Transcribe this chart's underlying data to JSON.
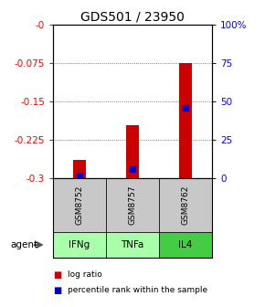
{
  "title": "GDS501 / 23950",
  "samples": [
    "GSM8752",
    "GSM8757",
    "GSM8762"
  ],
  "agents": [
    "IFNg",
    "TNFa",
    "IL4"
  ],
  "log_ratios": [
    -0.265,
    -0.197,
    -0.075
  ],
  "percentile_ranks": [
    1.5,
    6.0,
    46.0
  ],
  "ylim_left": [
    -0.3,
    0.0
  ],
  "ylim_right": [
    0,
    100
  ],
  "yticks_left": [
    0.0,
    -0.075,
    -0.15,
    -0.225,
    -0.3
  ],
  "ytick_labels_left": [
    "-0",
    "-0.075",
    "-0.15",
    "-0.225",
    "-0.3"
  ],
  "yticks_right": [
    100,
    75,
    50,
    25,
    0
  ],
  "ytick_labels_right": [
    "100%",
    "75",
    "50",
    "25",
    "0"
  ],
  "bar_color": "#cc0000",
  "marker_color": "#0000cc",
  "sample_box_color": "#c8c8c8",
  "agent_colors": [
    "#aaffaa",
    "#aaffaa",
    "#44cc44"
  ],
  "legend_log_ratio": "log ratio",
  "legend_percentile": "percentile rank within the sample",
  "grid_color": "#555555",
  "bar_width": 0.25
}
